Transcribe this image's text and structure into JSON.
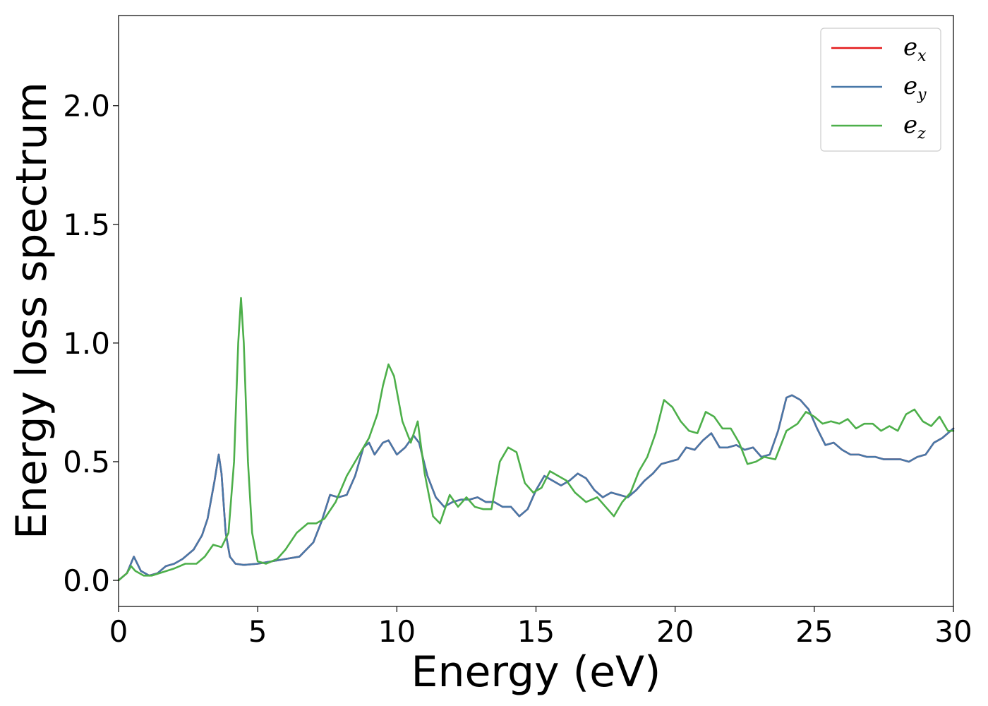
{
  "chart_data": {
    "type": "line",
    "title": "",
    "xlabel": "Energy (eV)",
    "ylabel": "Energy loss spectrum",
    "xlim": [
      0,
      30
    ],
    "ylim": [
      -0.11,
      2.38
    ],
    "xticks": [
      0,
      5,
      10,
      15,
      20,
      25,
      30
    ],
    "xtick_labels": [
      "0",
      "5",
      "10",
      "15",
      "20",
      "25",
      "30"
    ],
    "yticks": [
      0.0,
      0.5,
      1.0,
      1.5,
      2.0
    ],
    "ytick_labels": [
      "0.0",
      "0.5",
      "1.0",
      "1.5",
      "2.0"
    ],
    "grid": false,
    "legend_position": "top-right",
    "series": [
      {
        "name": "e_x",
        "legend_main": "e",
        "legend_sub": "x",
        "color": "#e41a1c",
        "x": [
          0,
          0.3,
          0.55,
          0.8,
          1.1,
          1.4,
          1.7,
          2.0,
          2.3,
          2.7,
          3.0,
          3.2,
          3.45,
          3.6,
          3.7,
          3.85,
          4.0,
          4.2,
          4.5,
          5.0,
          5.5,
          6.0,
          6.5,
          7.0,
          7.3,
          7.6,
          7.9,
          8.2,
          8.5,
          8.8,
          9.0,
          9.2,
          9.5,
          9.7,
          10.0,
          10.3,
          10.6,
          10.8,
          11.1,
          11.4,
          11.7,
          12.0,
          12.3,
          12.6,
          12.9,
          13.2,
          13.5,
          13.8,
          14.1,
          14.4,
          14.7,
          15.0,
          15.3,
          15.6,
          15.9,
          16.2,
          16.5,
          16.8,
          17.1,
          17.4,
          17.7,
          18.0,
          18.3,
          18.6,
          18.9,
          19.2,
          19.5,
          19.8,
          20.1,
          20.4,
          20.7,
          21.0,
          21.3,
          21.6,
          21.9,
          22.2,
          22.5,
          22.8,
          23.1,
          23.4,
          23.7,
          24.0,
          24.2,
          24.5,
          24.8,
          25.1,
          25.4,
          25.7,
          26.0,
          26.3,
          26.6,
          26.9,
          27.2,
          27.5,
          27.8,
          28.1,
          28.4,
          28.7,
          29.0,
          29.3,
          29.6,
          30.0
        ],
        "y": [
          0.0,
          0.03,
          0.1,
          0.04,
          0.02,
          0.03,
          0.06,
          0.07,
          0.09,
          0.13,
          0.19,
          0.26,
          0.42,
          0.53,
          0.45,
          0.2,
          0.1,
          0.07,
          0.065,
          0.07,
          0.08,
          0.09,
          0.1,
          0.16,
          0.25,
          0.36,
          0.35,
          0.36,
          0.44,
          0.56,
          0.58,
          0.53,
          0.58,
          0.59,
          0.53,
          0.56,
          0.61,
          0.58,
          0.44,
          0.35,
          0.31,
          0.33,
          0.34,
          0.34,
          0.35,
          0.33,
          0.33,
          0.31,
          0.31,
          0.27,
          0.3,
          0.38,
          0.44,
          0.42,
          0.4,
          0.42,
          0.45,
          0.43,
          0.38,
          0.35,
          0.37,
          0.36,
          0.35,
          0.38,
          0.42,
          0.45,
          0.49,
          0.5,
          0.51,
          0.56,
          0.55,
          0.59,
          0.62,
          0.56,
          0.56,
          0.57,
          0.55,
          0.56,
          0.52,
          0.53,
          0.63,
          0.77,
          0.78,
          0.76,
          0.72,
          0.64,
          0.57,
          0.58,
          0.55,
          0.53,
          0.53,
          0.52,
          0.52,
          0.51,
          0.51,
          0.51,
          0.5,
          0.52,
          0.53,
          0.58,
          0.6,
          0.64
        ]
      },
      {
        "name": "e_y",
        "legend_main": "e",
        "legend_sub": "y",
        "color": "#4878a8",
        "x": [
          0,
          0.3,
          0.55,
          0.8,
          1.1,
          1.4,
          1.7,
          2.0,
          2.3,
          2.7,
          3.0,
          3.2,
          3.45,
          3.6,
          3.7,
          3.85,
          4.0,
          4.2,
          4.5,
          5.0,
          5.5,
          6.0,
          6.5,
          7.0,
          7.3,
          7.6,
          7.9,
          8.2,
          8.5,
          8.8,
          9.0,
          9.2,
          9.5,
          9.7,
          10.0,
          10.3,
          10.6,
          10.8,
          11.1,
          11.4,
          11.7,
          12.0,
          12.3,
          12.6,
          12.9,
          13.2,
          13.5,
          13.8,
          14.1,
          14.4,
          14.7,
          15.0,
          15.3,
          15.6,
          15.9,
          16.2,
          16.5,
          16.8,
          17.1,
          17.4,
          17.7,
          18.0,
          18.3,
          18.6,
          18.9,
          19.2,
          19.5,
          19.8,
          20.1,
          20.4,
          20.7,
          21.0,
          21.3,
          21.6,
          21.9,
          22.2,
          22.5,
          22.8,
          23.1,
          23.4,
          23.7,
          24.0,
          24.2,
          24.5,
          24.8,
          25.1,
          25.4,
          25.7,
          26.0,
          26.3,
          26.6,
          26.9,
          27.2,
          27.5,
          27.8,
          28.1,
          28.4,
          28.7,
          29.0,
          29.3,
          29.6,
          30.0
        ],
        "y": [
          0.0,
          0.03,
          0.1,
          0.04,
          0.02,
          0.03,
          0.06,
          0.07,
          0.09,
          0.13,
          0.19,
          0.26,
          0.42,
          0.53,
          0.45,
          0.2,
          0.1,
          0.07,
          0.065,
          0.07,
          0.08,
          0.09,
          0.1,
          0.16,
          0.25,
          0.36,
          0.35,
          0.36,
          0.44,
          0.56,
          0.58,
          0.53,
          0.58,
          0.59,
          0.53,
          0.56,
          0.61,
          0.58,
          0.44,
          0.35,
          0.31,
          0.33,
          0.34,
          0.34,
          0.35,
          0.33,
          0.33,
          0.31,
          0.31,
          0.27,
          0.3,
          0.38,
          0.44,
          0.42,
          0.4,
          0.42,
          0.45,
          0.43,
          0.38,
          0.35,
          0.37,
          0.36,
          0.35,
          0.38,
          0.42,
          0.45,
          0.49,
          0.5,
          0.51,
          0.56,
          0.55,
          0.59,
          0.62,
          0.56,
          0.56,
          0.57,
          0.55,
          0.56,
          0.52,
          0.53,
          0.63,
          0.77,
          0.78,
          0.76,
          0.72,
          0.64,
          0.57,
          0.58,
          0.55,
          0.53,
          0.53,
          0.52,
          0.52,
          0.51,
          0.51,
          0.51,
          0.5,
          0.52,
          0.53,
          0.58,
          0.6,
          0.64
        ]
      },
      {
        "name": "e_z",
        "legend_main": "e",
        "legend_sub": "z",
        "color": "#4daf4a",
        "x": [
          0,
          0.3,
          0.45,
          0.6,
          0.9,
          1.2,
          1.6,
          2.0,
          2.4,
          2.8,
          3.1,
          3.4,
          3.7,
          3.95,
          4.15,
          4.3,
          4.4,
          4.5,
          4.65,
          4.8,
          5.0,
          5.3,
          5.7,
          6.0,
          6.4,
          6.8,
          7.1,
          7.4,
          7.8,
          8.2,
          8.6,
          9.0,
          9.3,
          9.5,
          9.7,
          9.9,
          10.2,
          10.5,
          10.75,
          11.0,
          11.3,
          11.55,
          11.9,
          12.2,
          12.5,
          12.8,
          13.1,
          13.4,
          13.7,
          14.0,
          14.3,
          14.6,
          14.9,
          15.2,
          15.5,
          15.8,
          16.1,
          16.4,
          16.8,
          17.2,
          17.5,
          17.8,
          18.1,
          18.4,
          18.7,
          19.0,
          19.3,
          19.6,
          19.9,
          20.2,
          20.5,
          20.8,
          21.1,
          21.4,
          21.7,
          22.0,
          22.3,
          22.6,
          22.9,
          23.2,
          23.6,
          24.0,
          24.4,
          24.7,
          25.0,
          25.3,
          25.6,
          25.9,
          26.2,
          26.5,
          26.8,
          27.1,
          27.4,
          27.7,
          28.0,
          28.3,
          28.6,
          28.9,
          29.2,
          29.5,
          29.8,
          30.0
        ],
        "y": [
          0.0,
          0.03,
          0.06,
          0.04,
          0.02,
          0.02,
          0.035,
          0.05,
          0.07,
          0.07,
          0.1,
          0.15,
          0.14,
          0.2,
          0.5,
          1.0,
          1.19,
          1.0,
          0.5,
          0.2,
          0.08,
          0.07,
          0.09,
          0.13,
          0.2,
          0.24,
          0.24,
          0.26,
          0.33,
          0.44,
          0.52,
          0.6,
          0.7,
          0.82,
          0.91,
          0.86,
          0.67,
          0.58,
          0.67,
          0.45,
          0.27,
          0.24,
          0.36,
          0.31,
          0.35,
          0.31,
          0.3,
          0.3,
          0.5,
          0.56,
          0.54,
          0.41,
          0.37,
          0.39,
          0.46,
          0.44,
          0.42,
          0.37,
          0.33,
          0.35,
          0.31,
          0.27,
          0.33,
          0.37,
          0.46,
          0.52,
          0.62,
          0.76,
          0.73,
          0.67,
          0.63,
          0.62,
          0.71,
          0.69,
          0.64,
          0.64,
          0.58,
          0.49,
          0.5,
          0.52,
          0.51,
          0.63,
          0.66,
          0.71,
          0.69,
          0.66,
          0.67,
          0.66,
          0.68,
          0.64,
          0.66,
          0.66,
          0.63,
          0.65,
          0.63,
          0.7,
          0.72,
          0.67,
          0.65,
          0.69,
          0.63,
          0.63
        ]
      }
    ]
  }
}
